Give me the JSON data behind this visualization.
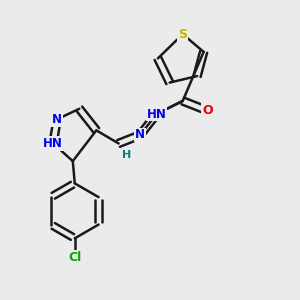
{
  "background_color": "#ebebeb",
  "bond_color": "#1a1a1a",
  "bond_width": 1.8,
  "atom_colors": {
    "S": "#c8b400",
    "N": "#0000ee",
    "O": "#ee0000",
    "Cl": "#00aa00",
    "C": "#1a1a1a",
    "H": "#008080"
  },
  "font_size": 8.5,
  "xlim": [
    -0.2,
    3.8
  ],
  "ylim": [
    -0.3,
    4.2
  ]
}
